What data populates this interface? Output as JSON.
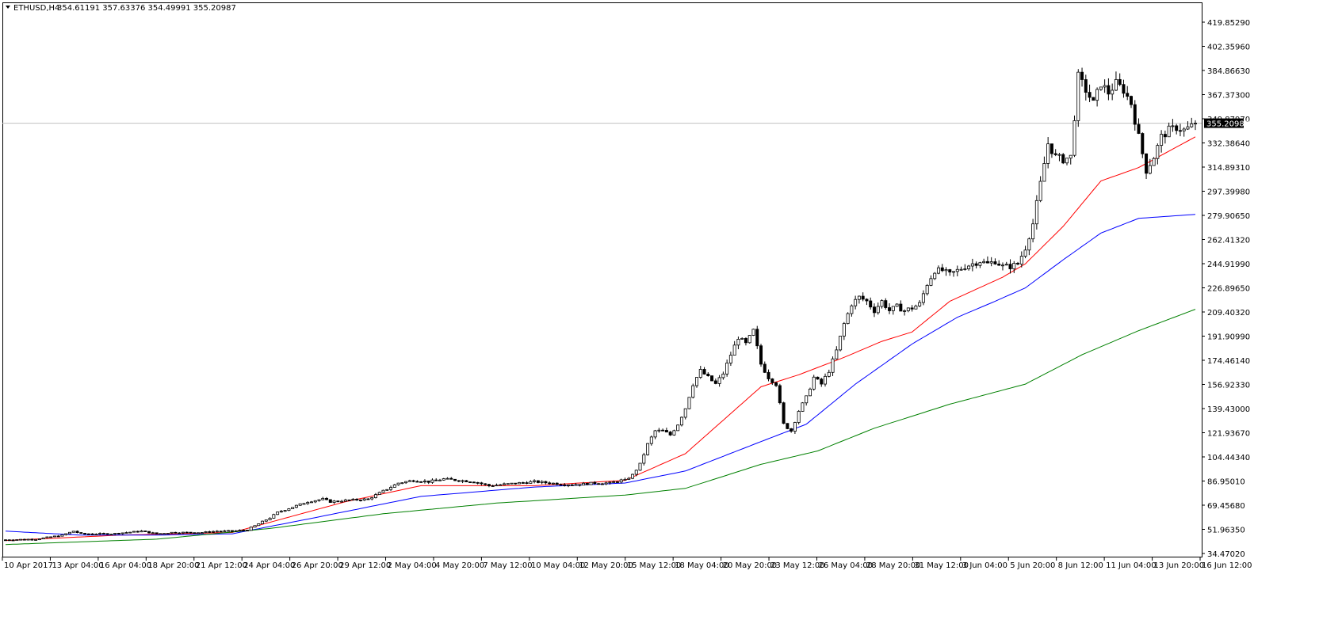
{
  "header": {
    "symbol": "ETHUSD,H4",
    "ohlc": "354.61191 357.63376 354.49991 355.20987"
  },
  "chart_data": {
    "type": "candlestick",
    "title": "ETHUSD,H4",
    "ylim": [
      34.4702,
      437.3
    ],
    "y_ticks": [
      "419.85290",
      "402.35960",
      "384.86630",
      "367.37300",
      "349.87970",
      "332.38640",
      "314.89310",
      "297.39980",
      "279.90650",
      "262.41320",
      "244.91990",
      "226.89650",
      "209.40320",
      "191.90990",
      "174.46140",
      "156.92330",
      "139.43000",
      "121.93670",
      "104.44340",
      "86.95010",
      "69.45680",
      "51.96350",
      "34.47020"
    ],
    "x_ticks": [
      "10 Apr 2017",
      "13 Apr 04:00",
      "16 Apr 04:00",
      "18 Apr 20:00",
      "21 Apr 12:00",
      "24 Apr 04:00",
      "26 Apr 20:00",
      "29 Apr 12:00",
      "2 May 04:00",
      "4 May 20:00",
      "7 May 12:00",
      "10 May 04:00",
      "12 May 20:00",
      "15 May 12:00",
      "18 May 04:00",
      "20 May 20:00",
      "23 May 12:00",
      "26 May 04:00",
      "28 May 20:00",
      "31 May 12:00",
      "3 Jun 04:00",
      "5 Jun 20:00",
      "8 Jun 12:00",
      "11 Jun 04:00",
      "13 Jun 20:00",
      "16 Jun 12:00"
    ],
    "current_price": 355.20987,
    "current_price_label": "355.20987",
    "price_path": [
      [
        0,
        43.5
      ],
      [
        8,
        44
      ],
      [
        15,
        47
      ],
      [
        18,
        50
      ],
      [
        20,
        48
      ],
      [
        24,
        48
      ],
      [
        28,
        48
      ],
      [
        32,
        49
      ],
      [
        36,
        50
      ],
      [
        40,
        48
      ],
      [
        44,
        49
      ],
      [
        48,
        49
      ],
      [
        52,
        49
      ],
      [
        56,
        50
      ],
      [
        60,
        50
      ],
      [
        64,
        51
      ],
      [
        66,
        54
      ],
      [
        68,
        57
      ],
      [
        70,
        60
      ],
      [
        72,
        64
      ],
      [
        76,
        68
      ],
      [
        80,
        72
      ],
      [
        84,
        74
      ],
      [
        86,
        72
      ],
      [
        90,
        73
      ],
      [
        96,
        74
      ],
      [
        100,
        80
      ],
      [
        104,
        86
      ],
      [
        108,
        88
      ],
      [
        112,
        87
      ],
      [
        116,
        89
      ],
      [
        120,
        88
      ],
      [
        124,
        87
      ],
      [
        128,
        84
      ],
      [
        132,
        85
      ],
      [
        136,
        86
      ],
      [
        140,
        87
      ],
      [
        144,
        86
      ],
      [
        148,
        85
      ],
      [
        152,
        85
      ],
      [
        156,
        86
      ],
      [
        160,
        86
      ],
      [
        163,
        88
      ],
      [
        164,
        88
      ],
      [
        166,
        92
      ],
      [
        168,
        100
      ],
      [
        170,
        115
      ],
      [
        172,
        125
      ],
      [
        174,
        125
      ],
      [
        176,
        122
      ],
      [
        178,
        130
      ],
      [
        180,
        142
      ],
      [
        182,
        160
      ],
      [
        184,
        170
      ],
      [
        186,
        165
      ],
      [
        188,
        160
      ],
      [
        190,
        168
      ],
      [
        192,
        182
      ],
      [
        194,
        195
      ],
      [
        196,
        190
      ],
      [
        198,
        200
      ],
      [
        200,
        175
      ],
      [
        202,
        165
      ],
      [
        204,
        160
      ],
      [
        206,
        130
      ],
      [
        208,
        125
      ],
      [
        210,
        140
      ],
      [
        212,
        150
      ],
      [
        214,
        165
      ],
      [
        216,
        160
      ],
      [
        218,
        170
      ],
      [
        220,
        185
      ],
      [
        222,
        205
      ],
      [
        224,
        220
      ],
      [
        226,
        225
      ],
      [
        228,
        222
      ],
      [
        230,
        215
      ],
      [
        232,
        222
      ],
      [
        234,
        215
      ],
      [
        236,
        218
      ],
      [
        238,
        215
      ],
      [
        240,
        217
      ],
      [
        242,
        220
      ],
      [
        244,
        235
      ],
      [
        246,
        245
      ],
      [
        248,
        245
      ],
      [
        250,
        242
      ],
      [
        252,
        245
      ],
      [
        254,
        248
      ],
      [
        256,
        250
      ],
      [
        258,
        252
      ],
      [
        260,
        250
      ],
      [
        262,
        252
      ],
      [
        264,
        248
      ],
      [
        266,
        248
      ],
      [
        268,
        250
      ],
      [
        270,
        262
      ],
      [
        272,
        280
      ],
      [
        274,
        310
      ],
      [
        276,
        340
      ],
      [
        278,
        330
      ],
      [
        280,
        328
      ],
      [
        282,
        330
      ],
      [
        284,
        390
      ],
      [
        286,
        380
      ],
      [
        288,
        370
      ],
      [
        290,
        385
      ],
      [
        292,
        378
      ],
      [
        294,
        385
      ],
      [
        296,
        380
      ],
      [
        298,
        370
      ],
      [
        300,
        345
      ],
      [
        302,
        320
      ],
      [
        304,
        330
      ],
      [
        306,
        345
      ],
      [
        308,
        350
      ],
      [
        310,
        352
      ],
      [
        312,
        350
      ],
      [
        314,
        353
      ],
      [
        315,
        355.2
      ]
    ],
    "moving_averages": [
      {
        "color": "#ff0000",
        "path": [
          [
            0,
            43
          ],
          [
            30,
            47
          ],
          [
            60,
            49
          ],
          [
            64,
            52
          ],
          [
            90,
            72
          ],
          [
            110,
            84
          ],
          [
            140,
            84
          ],
          [
            164,
            88
          ],
          [
            180,
            108
          ],
          [
            192,
            138
          ],
          [
            200,
            158
          ],
          [
            210,
            167
          ],
          [
            222,
            180
          ],
          [
            232,
            192
          ],
          [
            240,
            199
          ],
          [
            250,
            222
          ],
          [
            264,
            240
          ],
          [
            270,
            250
          ],
          [
            280,
            278
          ],
          [
            290,
            312
          ],
          [
            300,
            322
          ],
          [
            315,
            345
          ]
        ]
      },
      {
        "color": "#0000ff",
        "path": [
          [
            0,
            50
          ],
          [
            20,
            47
          ],
          [
            40,
            47
          ],
          [
            60,
            48
          ],
          [
            80,
            59
          ],
          [
            110,
            76
          ],
          [
            140,
            83
          ],
          [
            164,
            86
          ],
          [
            180,
            95
          ],
          [
            200,
            117
          ],
          [
            212,
            130
          ],
          [
            225,
            160
          ],
          [
            240,
            190
          ],
          [
            252,
            210
          ],
          [
            262,
            222
          ],
          [
            270,
            232
          ],
          [
            280,
            253
          ],
          [
            290,
            273
          ],
          [
            300,
            284
          ],
          [
            315,
            287
          ]
        ]
      },
      {
        "color": "#008000",
        "path": [
          [
            0,
            40
          ],
          [
            40,
            44
          ],
          [
            70,
            52
          ],
          [
            100,
            63
          ],
          [
            130,
            71
          ],
          [
            164,
            77
          ],
          [
            180,
            82
          ],
          [
            200,
            100
          ],
          [
            215,
            110
          ],
          [
            230,
            127
          ],
          [
            250,
            145
          ],
          [
            270,
            160
          ],
          [
            285,
            182
          ],
          [
            300,
            200
          ],
          [
            315,
            216
          ]
        ]
      }
    ]
  }
}
